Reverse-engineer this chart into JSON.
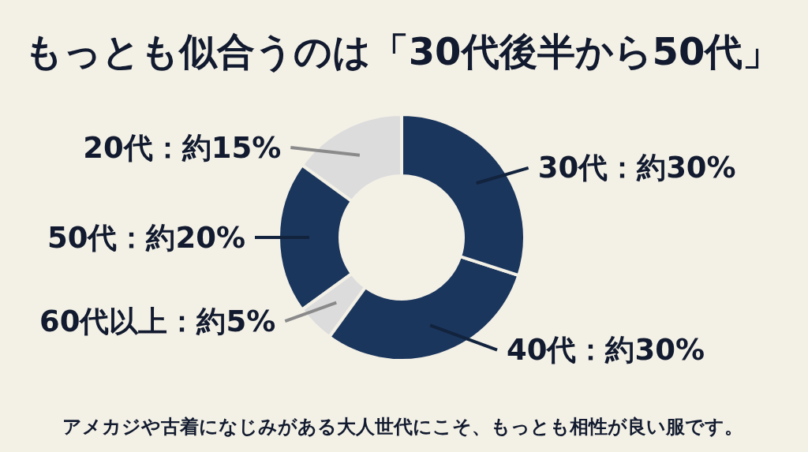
{
  "chart_data": {
    "type": "donut",
    "title": "もっとも似合うのは「30代後半から50代」",
    "categories": [
      "20代",
      "50代",
      "60代以上",
      "40代",
      "30代"
    ],
    "values": [
      15,
      20,
      5,
      30,
      30
    ],
    "colors": [
      "#dcdcdc",
      "#1b365d",
      "#dcdcdc",
      "#1b365d",
      "#1b365d"
    ],
    "value_labels": [
      "約15%",
      "約20%",
      "約5%",
      "約30%",
      "約30%"
    ],
    "annotations": [
      "アメカジや古着になじみがある大人世代にこそ、もっとも相性が良い服です。"
    ]
  }
}
